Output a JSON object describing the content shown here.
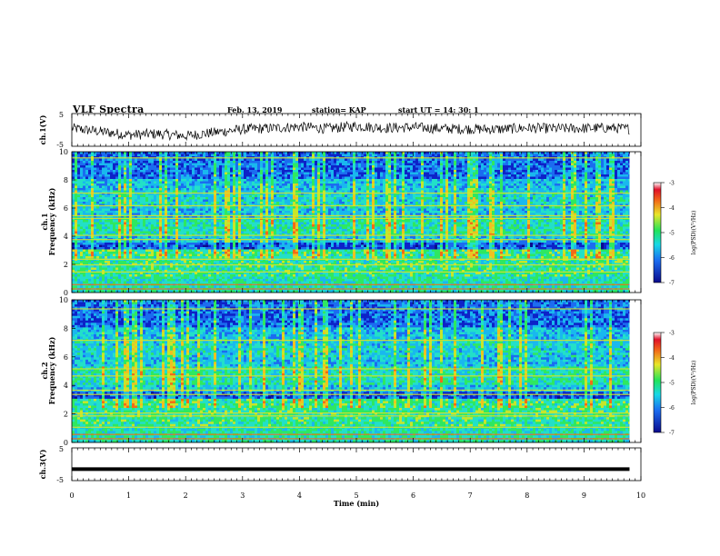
{
  "header": {
    "title": "VLF Spectra",
    "date": "Feb. 13, 2019",
    "station": "station= KAP",
    "start": "start  UT =   14: 30: 1"
  },
  "chart_data": [
    {
      "type": "line",
      "panel": "ch1-waveform",
      "ylabel": "ch.1(V)",
      "ylim": [
        -5,
        5
      ],
      "yticks": [
        "5",
        "-5"
      ],
      "x": [
        0,
        0.5,
        1,
        1.5,
        2,
        2.5,
        3,
        3.5,
        4,
        4.5,
        5,
        5.5,
        6,
        6.5,
        7,
        7.5,
        8,
        8.5,
        9,
        9.5,
        9.8
      ],
      "y": [
        0.5,
        -0.5,
        -1.5,
        -1.2,
        -1.8,
        -0.8,
        0.2,
        0.5,
        1.0,
        0.4,
        1.2,
        0.6,
        0.8,
        0.4,
        0.3,
        0.2,
        0.6,
        0.4,
        0.5,
        0.6,
        0.3
      ]
    },
    {
      "type": "heatmap",
      "panel": "ch1-spectrogram",
      "ylabel": "ch.1\nFrequency (kHz)",
      "ylim": [
        0,
        10
      ],
      "yticks": [
        "0",
        "2",
        "4",
        "6",
        "8",
        "10"
      ],
      "xlim": [
        0,
        9.8
      ],
      "colorbar": {
        "label": "log(PSD)(V²/Hz)",
        "range": [
          -7,
          -3
        ],
        "ticks": [
          "-3",
          "-4",
          "-5",
          "-6",
          "-7"
        ]
      }
    },
    {
      "type": "heatmap",
      "panel": "ch2-spectrogram",
      "ylabel": "ch.2\nFrequency (kHz)",
      "ylim": [
        0,
        10
      ],
      "yticks": [
        "0",
        "2",
        "4",
        "6",
        "8",
        "10"
      ],
      "xlim": [
        0,
        9.8
      ],
      "colorbar": {
        "label": "log(PSD)(V²/Hz)",
        "range": [
          -7,
          -3
        ],
        "ticks": [
          "-3",
          "-4",
          "-5",
          "-6",
          "-7"
        ]
      }
    },
    {
      "type": "line",
      "panel": "ch3-waveform",
      "ylabel": "ch.3(V)",
      "ylim": [
        -5,
        5
      ],
      "yticks": [
        "5",
        "-5"
      ],
      "x": [
        0,
        9.8
      ],
      "y": [
        -1.5,
        -1.5
      ]
    }
  ],
  "xaxis": {
    "label": "Time (min)",
    "ticks": [
      "0",
      "1",
      "2",
      "3",
      "4",
      "5",
      "6",
      "7",
      "8",
      "9",
      "10"
    ],
    "range": [
      0,
      10
    ]
  }
}
